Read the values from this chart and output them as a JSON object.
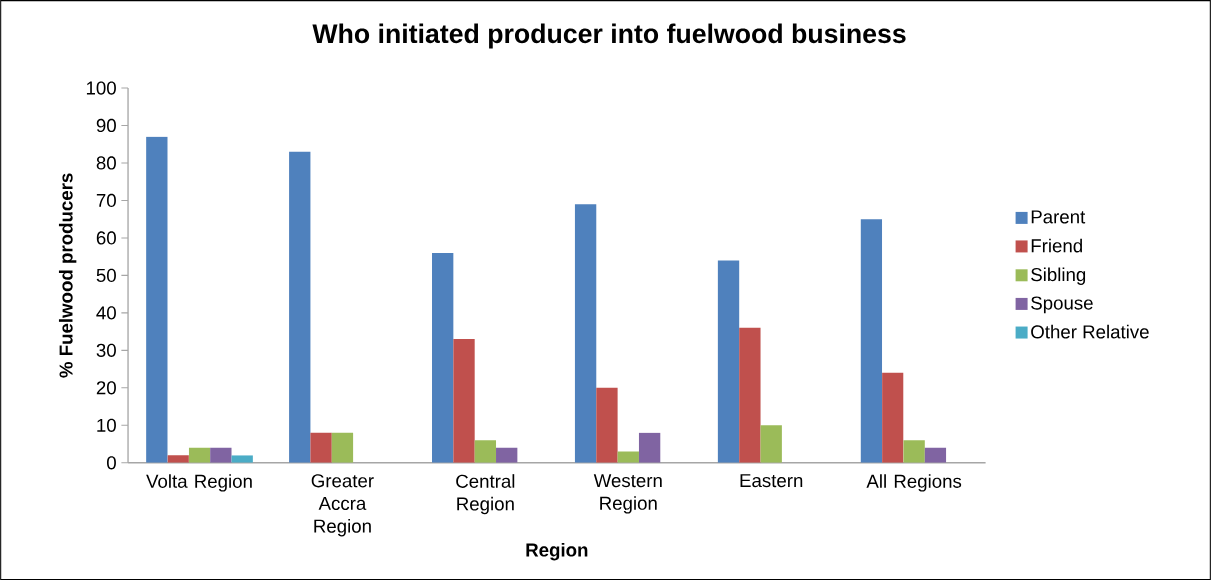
{
  "chart_data": {
    "type": "bar",
    "title": "Who initiated producer into fuelwood business",
    "xlabel": "Region",
    "ylabel": "% Fuelwood producers",
    "categories": [
      "Volta Region",
      "Greater Accra Region",
      "Central Region",
      "Western Region",
      "Eastern",
      "All Regions"
    ],
    "series": [
      {
        "name": "Parent",
        "color": "#4f81bd",
        "values": [
          87,
          83,
          56,
          69,
          54,
          65
        ]
      },
      {
        "name": "Friend",
        "color": "#c0504d",
        "values": [
          2,
          8,
          33,
          20,
          36,
          24
        ]
      },
      {
        "name": "Sibling",
        "color": "#9bbb59",
        "values": [
          4,
          8,
          6,
          3,
          10,
          6
        ]
      },
      {
        "name": "Spouse",
        "color": "#8064a2",
        "values": [
          4,
          0,
          4,
          8,
          0,
          4
        ]
      },
      {
        "name": "Other Relative",
        "color": "#4bacc6",
        "values": [
          2,
          0,
          0,
          0,
          0,
          0
        ]
      }
    ],
    "ylim": [
      0,
      100
    ],
    "yticks": [
      0,
      10,
      20,
      30,
      40,
      50,
      60,
      70,
      80,
      90,
      100
    ],
    "grid": false,
    "legend": "right"
  }
}
